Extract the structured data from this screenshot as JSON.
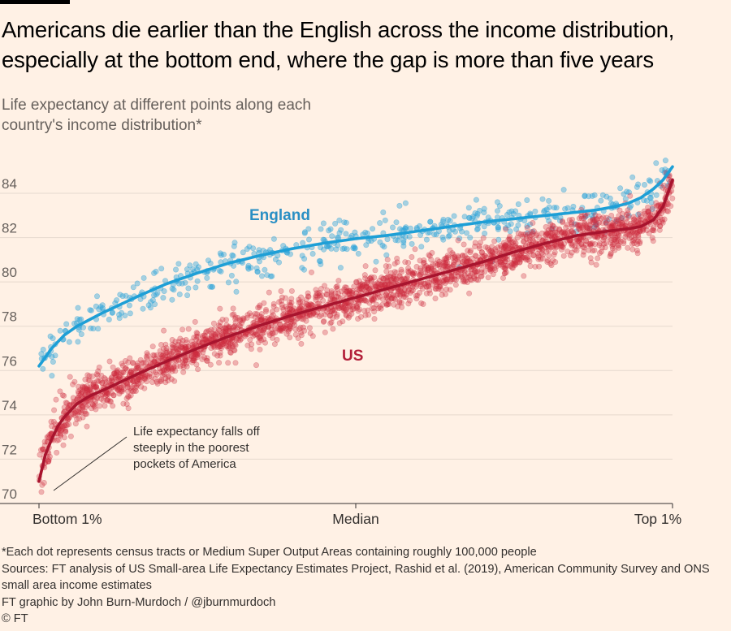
{
  "header": {
    "title": "Americans die earlier than the English across the income distribution, especially at the bottom end, where the gap is more than five years",
    "subtitle": "Life expectancy at different points along each country's income distribution*"
  },
  "colors": {
    "background": "#fff1e5",
    "england": "#2aa3d9",
    "us": "#cc2a3e",
    "grid": "#e6d9ce"
  },
  "chart_data": {
    "type": "scatter",
    "title": "Americans die earlier than the English across the income distribution, especially at the bottom end, where the gap is more than five years",
    "ylabel": "Life expectancy at different points along each country's income distribution*",
    "ylim": [
      70,
      86
    ],
    "yticks": [
      70,
      72,
      74,
      76,
      78,
      80,
      82,
      84
    ],
    "xlim": [
      0,
      100
    ],
    "xticks": [
      {
        "value": 0,
        "label": "Bottom 1%"
      },
      {
        "value": 50,
        "label": "Median"
      },
      {
        "value": 100,
        "label": "Top 1%"
      }
    ],
    "grid": true,
    "legend": "inline labels",
    "series": [
      {
        "name": "England",
        "label": "England",
        "color": "#2aa3d9",
        "trend_x": [
          0,
          1,
          2,
          4,
          6,
          8,
          10,
          13,
          16,
          20,
          25,
          30,
          35,
          40,
          45,
          50,
          55,
          60,
          65,
          70,
          75,
          80,
          85,
          88,
          91,
          93,
          95,
          97,
          98.5,
          100
        ],
        "trend_y": [
          76.2,
          76.6,
          77.0,
          77.6,
          78.0,
          78.3,
          78.6,
          79.0,
          79.4,
          79.9,
          80.4,
          80.85,
          81.2,
          81.5,
          81.75,
          81.95,
          82.1,
          82.3,
          82.5,
          82.7,
          82.85,
          83.0,
          83.15,
          83.25,
          83.4,
          83.55,
          83.8,
          84.2,
          84.6,
          85.2
        ],
        "dots_count_approx": 500
      },
      {
        "name": "US",
        "label": "US",
        "color": "#cc2a3e",
        "trend_x": [
          0,
          0.5,
          1,
          2,
          3,
          4,
          6,
          8,
          10,
          13,
          16,
          20,
          25,
          30,
          35,
          40,
          45,
          50,
          55,
          60,
          65,
          70,
          75,
          80,
          85,
          90,
          93,
          95,
          97,
          98.5,
          100
        ],
        "trend_y": [
          71.0,
          71.6,
          72.2,
          72.9,
          73.5,
          73.9,
          74.5,
          74.85,
          75.1,
          75.5,
          75.9,
          76.4,
          77.0,
          77.55,
          78.05,
          78.5,
          78.9,
          79.3,
          79.7,
          80.1,
          80.5,
          80.9,
          81.35,
          81.75,
          82.1,
          82.3,
          82.4,
          82.5,
          82.8,
          83.4,
          84.6
        ],
        "dots_count_approx": 2500
      }
    ],
    "annotations": [
      {
        "text": [
          "Life expectancy falls off",
          "steeply in the poorest",
          "pockets of America"
        ],
        "points_to_x": 0,
        "points_to_y": 70.5
      }
    ]
  },
  "footer": {
    "note": "*Each dot represents census tracts or Medium Super Output Areas containing roughly 100,000 people",
    "sources": "Sources: FT analysis of US Small-area Life Expectancy Estimates Project, Rashid et al. (2019), American Community Survey and ONS small area income estimates",
    "credit": "FT graphic by John Burn-Murdoch / @jburnmurdoch",
    "copyright": "© FT"
  }
}
